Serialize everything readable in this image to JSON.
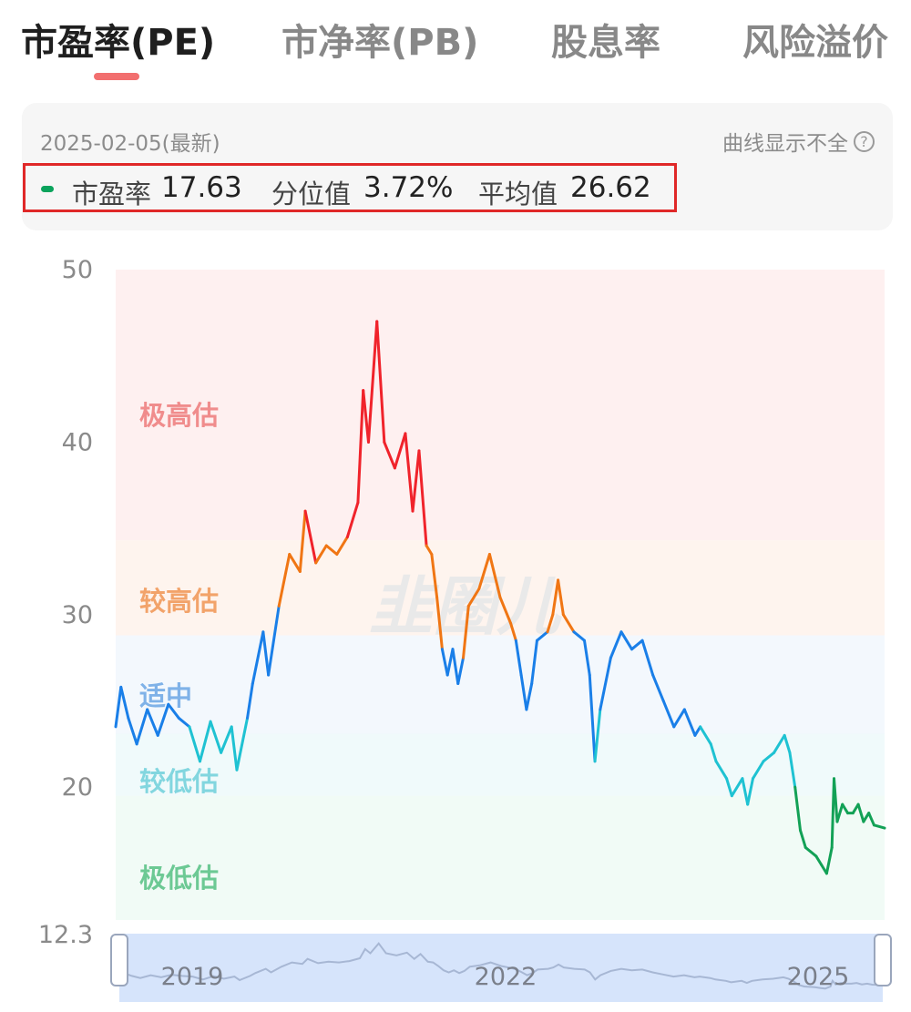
{
  "tabs": [
    {
      "label": "市盈率(PE)",
      "active": true
    },
    {
      "label": "市净率(PB)",
      "active": false
    },
    {
      "label": "股息率",
      "active": false
    },
    {
      "label": "风险溢价",
      "active": false
    }
  ],
  "info": {
    "date": "2025-02-05(最新)",
    "help_label": "曲线显示不全",
    "help_icon": "question-icon",
    "metrics": [
      {
        "label": "市盈率",
        "value": "17.63"
      },
      {
        "label": "分位值",
        "value": "3.72%"
      },
      {
        "label": "平均值",
        "value": "26.62"
      }
    ],
    "dot_color": "#0aa35c",
    "highlight_color": "#e02828"
  },
  "chart_data": {
    "type": "line",
    "y_ticks": [
      "50",
      "40",
      "30",
      "20",
      "12.3"
    ],
    "ylim": [
      12.3,
      50
    ],
    "x_ticks": [
      "2019",
      "2022",
      "2025"
    ],
    "zones": [
      {
        "label": "极高估",
        "from": 34.3,
        "to": 50,
        "color": "#fde3e3",
        "label_color": "#f08c8c"
      },
      {
        "label": "较高估",
        "from": 28.8,
        "to": 34.3,
        "color": "#fdebe0",
        "label_color": "#f2a36a"
      },
      {
        "label": "适中",
        "from": 23.1,
        "to": 28.8,
        "color": "#e9f2fb",
        "label_color": "#7fb2e8"
      },
      {
        "label": "较低估",
        "from": 19.5,
        "to": 23.1,
        "color": "#e4f5f7",
        "label_color": "#82d6df"
      },
      {
        "label": "极低估",
        "from": 12.3,
        "to": 19.5,
        "color": "#e6f7ee",
        "label_color": "#6cc994"
      }
    ],
    "series": [
      {
        "points": [
          [
            2017.8,
            23.5
          ],
          [
            2017.85,
            25.8
          ],
          [
            2017.92,
            24.0
          ],
          [
            2018.0,
            22.5
          ],
          [
            2018.1,
            24.5
          ],
          [
            2018.2,
            23.0
          ],
          [
            2018.3,
            24.8
          ],
          [
            2018.4,
            24.0
          ],
          [
            2018.5,
            23.5
          ],
          [
            2018.6,
            21.5
          ],
          [
            2018.7,
            23.8
          ],
          [
            2018.8,
            22.0
          ],
          [
            2018.9,
            23.5
          ],
          [
            2018.95,
            21.0
          ],
          [
            2019.05,
            24.0
          ],
          [
            2019.1,
            26.0
          ],
          [
            2019.2,
            29.0
          ],
          [
            2019.25,
            26.5
          ],
          [
            2019.35,
            30.5
          ],
          [
            2019.45,
            33.5
          ],
          [
            2019.55,
            32.5
          ],
          [
            2019.6,
            36.0
          ],
          [
            2019.7,
            33.0
          ],
          [
            2019.8,
            34.0
          ],
          [
            2019.9,
            33.5
          ],
          [
            2020.0,
            34.5
          ],
          [
            2020.1,
            36.5
          ],
          [
            2020.15,
            43.0
          ],
          [
            2020.2,
            40.0
          ],
          [
            2020.28,
            47.0
          ],
          [
            2020.35,
            40.0
          ],
          [
            2020.45,
            38.5
          ],
          [
            2020.55,
            40.5
          ],
          [
            2020.62,
            36.0
          ],
          [
            2020.68,
            39.5
          ],
          [
            2020.75,
            34.0
          ],
          [
            2020.8,
            33.5
          ],
          [
            2020.85,
            31.0
          ],
          [
            2020.9,
            28.0
          ],
          [
            2020.95,
            26.5
          ],
          [
            2021.0,
            28.0
          ],
          [
            2021.05,
            26.0
          ],
          [
            2021.1,
            27.5
          ],
          [
            2021.15,
            30.5
          ],
          [
            2021.25,
            31.5
          ],
          [
            2021.35,
            33.5
          ],
          [
            2021.45,
            31.0
          ],
          [
            2021.55,
            29.5
          ],
          [
            2021.6,
            28.5
          ],
          [
            2021.65,
            26.5
          ],
          [
            2021.7,
            24.5
          ],
          [
            2021.75,
            26.0
          ],
          [
            2021.8,
            28.5
          ],
          [
            2021.9,
            29.0
          ],
          [
            2021.95,
            30.0
          ],
          [
            2022.0,
            32.0
          ],
          [
            2022.05,
            30.0
          ],
          [
            2022.15,
            29.0
          ],
          [
            2022.25,
            28.5
          ],
          [
            2022.3,
            26.5
          ],
          [
            2022.35,
            21.5
          ],
          [
            2022.4,
            24.5
          ],
          [
            2022.5,
            27.5
          ],
          [
            2022.6,
            29.0
          ],
          [
            2022.7,
            28.0
          ],
          [
            2022.8,
            28.5
          ],
          [
            2022.9,
            26.5
          ],
          [
            2023.0,
            25.0
          ],
          [
            2023.1,
            23.5
          ],
          [
            2023.2,
            24.5
          ],
          [
            2023.3,
            23.0
          ],
          [
            2023.35,
            23.5
          ],
          [
            2023.45,
            22.5
          ],
          [
            2023.5,
            21.5
          ],
          [
            2023.6,
            20.5
          ],
          [
            2023.65,
            19.5
          ],
          [
            2023.75,
            20.5
          ],
          [
            2023.8,
            19.0
          ],
          [
            2023.85,
            20.5
          ],
          [
            2023.95,
            21.5
          ],
          [
            2024.05,
            22.0
          ],
          [
            2024.15,
            23.0
          ],
          [
            2024.2,
            22.0
          ],
          [
            2024.25,
            20.0
          ],
          [
            2024.3,
            17.5
          ],
          [
            2024.35,
            16.5
          ],
          [
            2024.45,
            16.0
          ],
          [
            2024.5,
            15.5
          ],
          [
            2024.55,
            15.0
          ],
          [
            2024.6,
            16.5
          ],
          [
            2024.62,
            20.5
          ],
          [
            2024.65,
            18.0
          ],
          [
            2024.7,
            19.0
          ],
          [
            2024.75,
            18.5
          ],
          [
            2024.8,
            18.5
          ],
          [
            2024.85,
            19.0
          ],
          [
            2024.9,
            18.0
          ],
          [
            2024.95,
            18.5
          ],
          [
            2025.0,
            17.8
          ],
          [
            2025.1,
            17.63
          ]
        ]
      }
    ],
    "line_colors": {
      "extreme_high": "#f0232b",
      "high": "#f07614",
      "medium": "#1a7fe8",
      "low": "#1fc2d2",
      "extreme_low": "#13a156"
    },
    "navigator": {
      "x_ticks": [
        "2019",
        "2022",
        "2025"
      ],
      "fill": "#d6e4fb",
      "line": "#a7b7d4",
      "handle": "#ffffff"
    },
    "watermark": "韭圈儿"
  }
}
